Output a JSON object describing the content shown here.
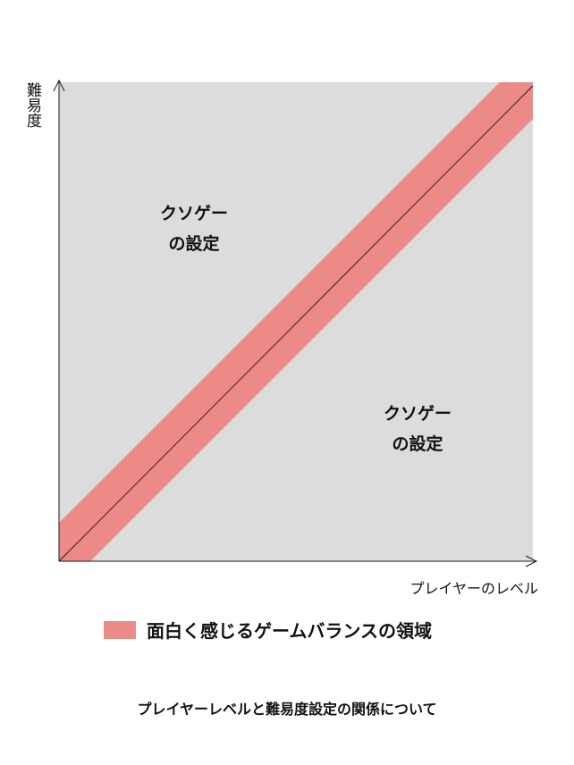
{
  "colors": {
    "background": "#dcdcdc",
    "band": "#ec8a88",
    "line": "#1a1a1a"
  },
  "axes": {
    "y_label": "難易度",
    "x_label": "プレイヤーのレベル"
  },
  "regions": {
    "upper_left": [
      "クソゲー",
      "の設定"
    ],
    "lower_right": [
      "クソゲー",
      "の設定"
    ]
  },
  "legend": {
    "label": "面白く感じるゲームバランスの領域"
  },
  "caption": "プレイヤーレベルと難易度設定の関係について"
}
